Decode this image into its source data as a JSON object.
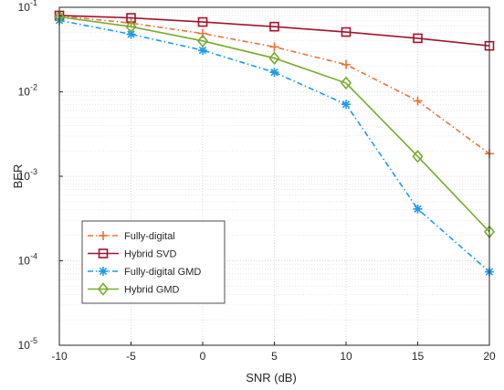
{
  "chart_data": {
    "type": "line",
    "title": "",
    "xlabel": "SNR (dB)",
    "ylabel": "BER",
    "x": [
      -10,
      -5,
      0,
      5,
      10,
      15,
      20
    ],
    "x_tick_labels": [
      "-10",
      "-5",
      "0",
      "5",
      "10",
      "15",
      "20"
    ],
    "xlim": [
      -10,
      20
    ],
    "ylim": [
      1e-05,
      0.1
    ],
    "yscale": "log",
    "y_tick_labels": [
      {
        "base": "10",
        "exp": "-5"
      },
      {
        "base": "10",
        "exp": "-4"
      },
      {
        "base": "10",
        "exp": "-3"
      },
      {
        "base": "10",
        "exp": "-2"
      },
      {
        "base": "10",
        "exp": "-1"
      }
    ],
    "grid": true,
    "legend_position": "bottom-left",
    "series": [
      {
        "name": "Fully-digital",
        "color": "#e8743b",
        "dash": "dashdot",
        "marker": "plus",
        "values": [
          0.079,
          0.065,
          0.049,
          0.034,
          0.021,
          0.0078,
          0.00185
        ]
      },
      {
        "name": "Hybrid SVD",
        "color": "#a2142f",
        "dash": "solid",
        "marker": "square",
        "values": [
          0.08,
          0.075,
          0.067,
          0.059,
          0.051,
          0.043,
          0.035
        ]
      },
      {
        "name": "Fully-digital GMD",
        "color": "#1f9be8",
        "dash": "dashdot",
        "marker": "star",
        "values": [
          0.07,
          0.048,
          0.031,
          0.017,
          0.0071,
          0.00041,
          7.4e-05
        ]
      },
      {
        "name": "Hybrid GMD",
        "color": "#77ac30",
        "dash": "solid",
        "marker": "diamond",
        "values": [
          0.077,
          0.059,
          0.04,
          0.025,
          0.0127,
          0.00172,
          0.00022
        ]
      }
    ]
  }
}
